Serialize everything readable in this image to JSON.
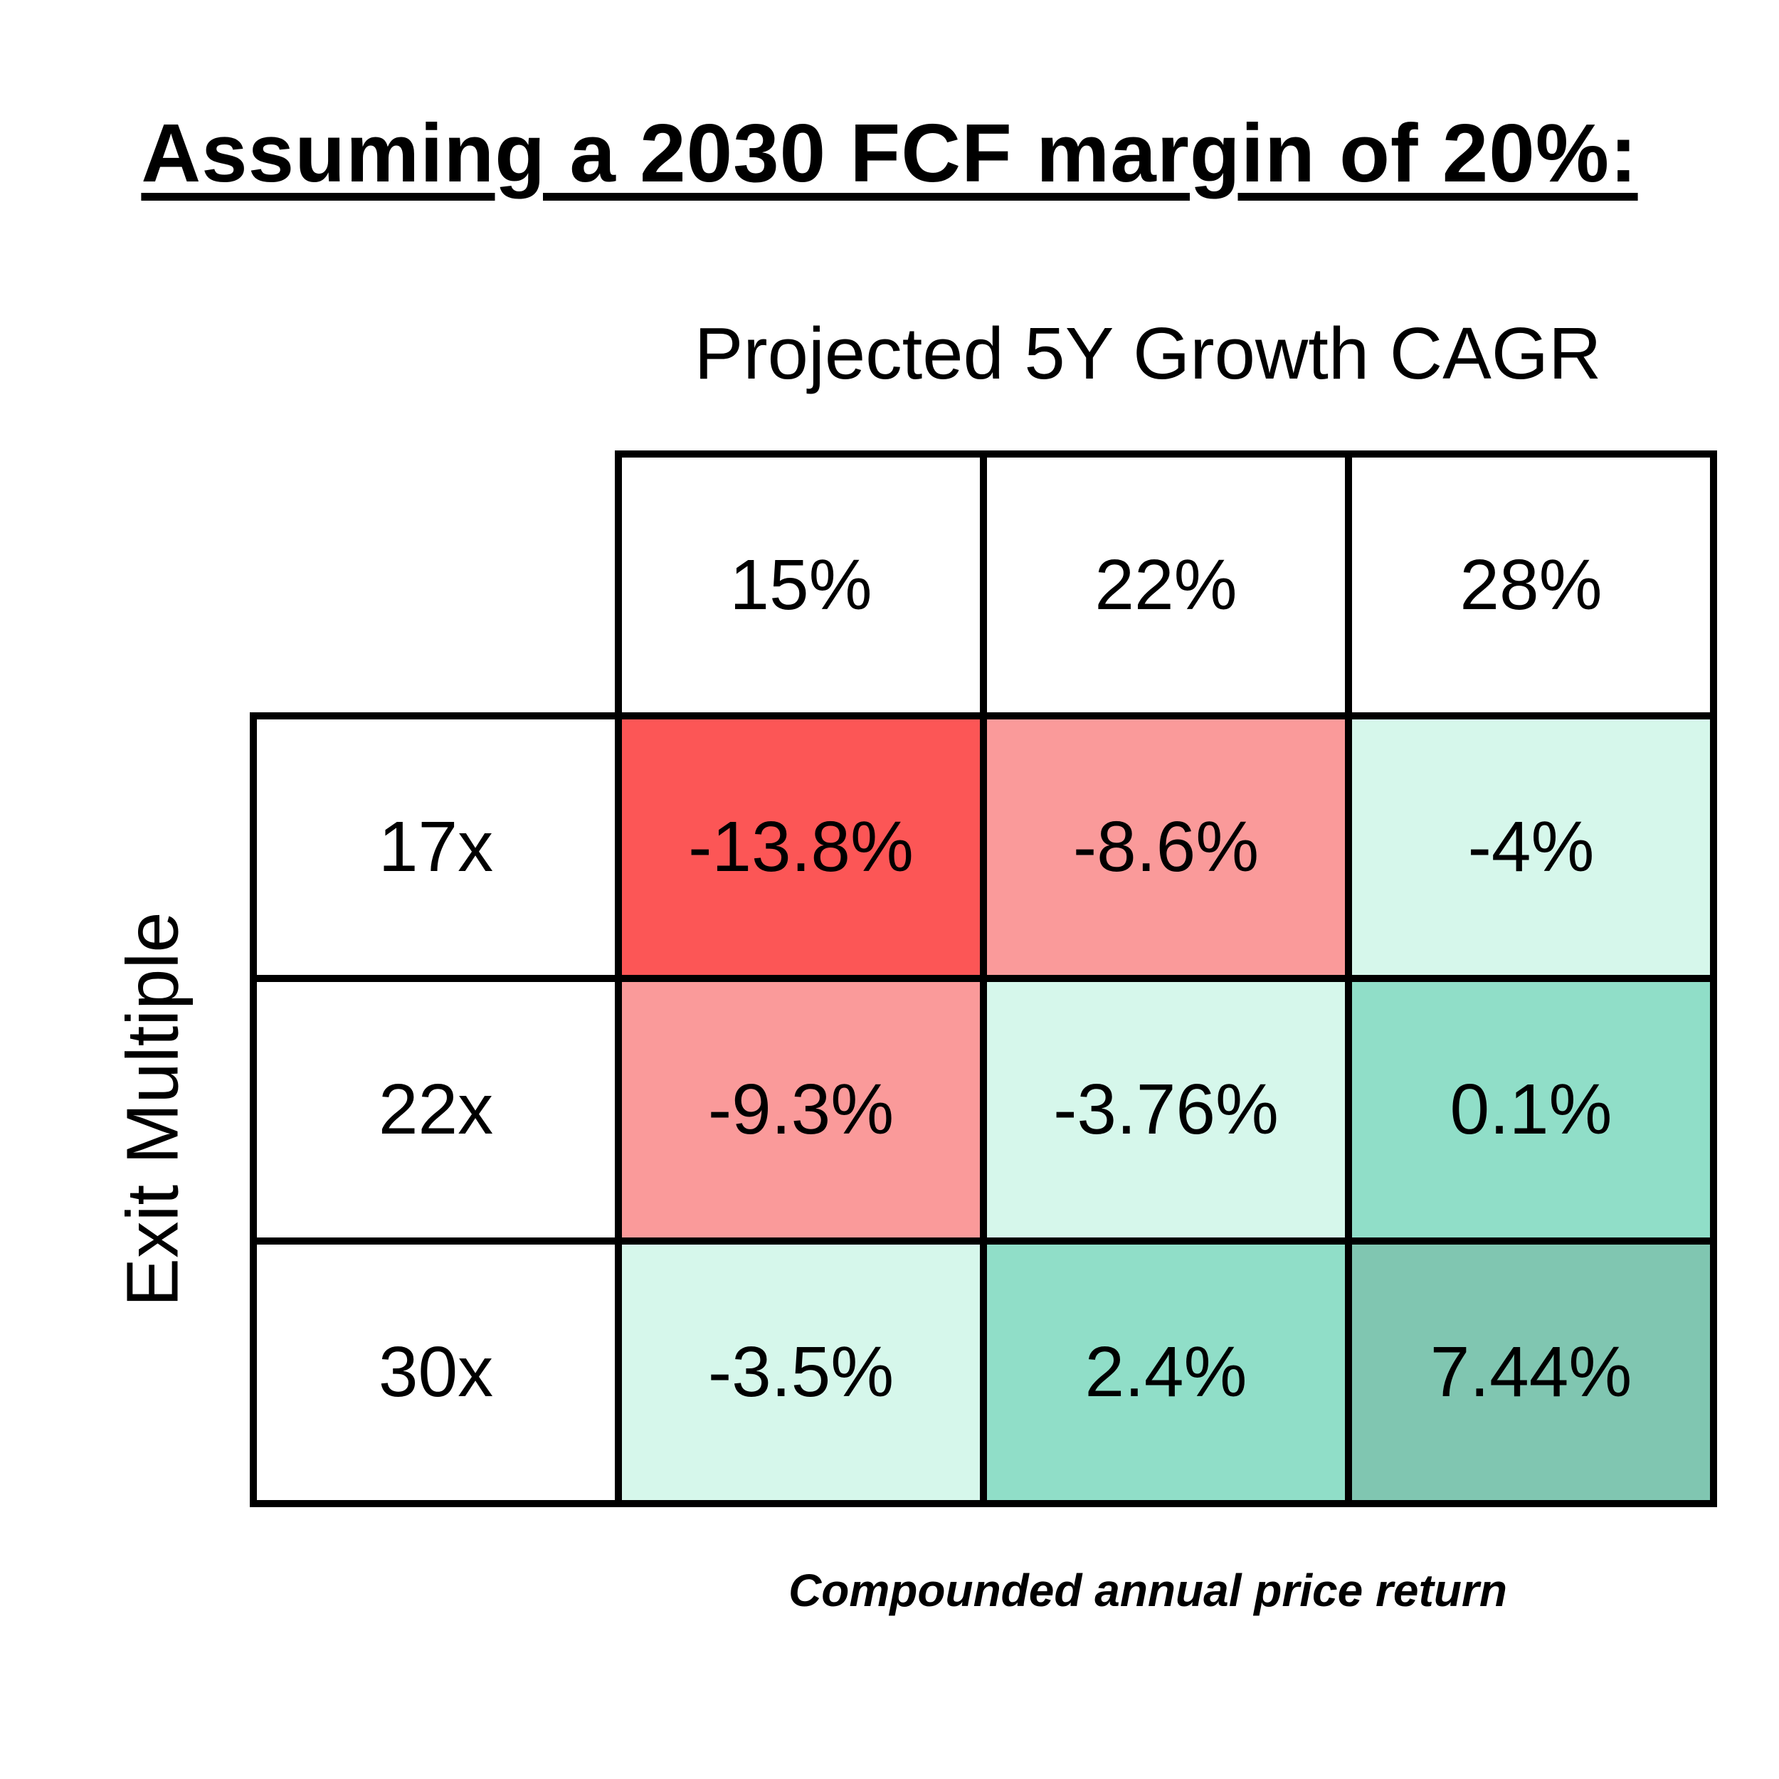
{
  "page": {
    "title": "Assuming a 2030 FCF margin of 20%:",
    "caption": "Compounded annual price return"
  },
  "colors": {
    "background": "#FFFFFF",
    "grid_line": "#000000",
    "text": "#000000",
    "strong_negative_red": "#FC5656",
    "negative_salmon": "#FA9A9A",
    "mild_pale_mint": "#D6F7EB",
    "positive_mint": "#90DEC8",
    "strong_positive_teal": "#80C6B1"
  },
  "chart_data": {
    "type": "heatmap",
    "title": "Assuming a 2030 FCF margin of 20%:",
    "x_axis": {
      "label": "Projected 5Y Growth CAGR",
      "categories": [
        "15%",
        "22%",
        "28%"
      ]
    },
    "y_axis": {
      "label": "Exit Multiple",
      "categories": [
        "17x",
        "22x",
        "30x"
      ]
    },
    "cell_metric": "Compounded annual price return",
    "legend": "none",
    "grid": "thick black borders, white header cells",
    "rows": [
      {
        "label": "17x",
        "cells": [
          {
            "value": "-13.8%",
            "color": "#FC5656"
          },
          {
            "value": "-8.6%",
            "color": "#FA9A9A"
          },
          {
            "value": "-4%",
            "color": "#D6F7EB"
          }
        ]
      },
      {
        "label": "22x",
        "cells": [
          {
            "value": "-9.3%",
            "color": "#FA9A9A"
          },
          {
            "value": "-3.76%",
            "color": "#D6F7EB"
          },
          {
            "value": "0.1%",
            "color": "#90DEC8"
          }
        ]
      },
      {
        "label": "30x",
        "cells": [
          {
            "value": "-3.5%",
            "color": "#D6F7EB"
          },
          {
            "value": "2.4%",
            "color": "#90DEC8"
          },
          {
            "value": "7.44%",
            "color": "#80C6B1"
          }
        ]
      }
    ]
  }
}
